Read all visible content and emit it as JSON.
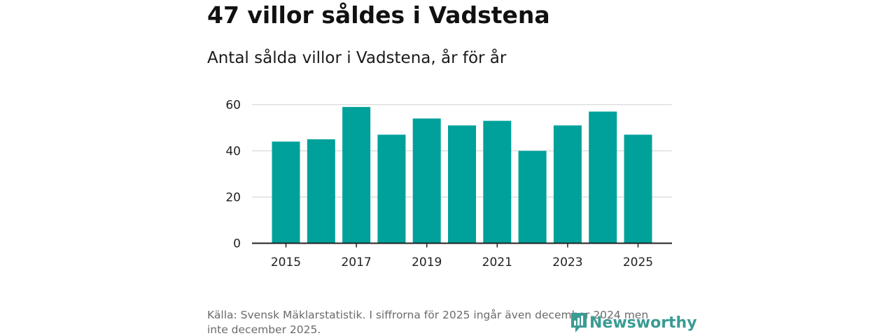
{
  "header": {
    "title": "47 villor såldes i Vadstena",
    "subtitle": "Antal sålda villor i Vadstena, år för år"
  },
  "chart_data": {
    "type": "bar",
    "categories": [
      "2015",
      "2016",
      "2017",
      "2018",
      "2019",
      "2020",
      "2021",
      "2022",
      "2023",
      "2024",
      "2025"
    ],
    "values": [
      44,
      45,
      59,
      47,
      54,
      51,
      53,
      40,
      51,
      57,
      47
    ],
    "x_tick_labels": [
      "2015",
      "2017",
      "2019",
      "2021",
      "2023",
      "2025"
    ],
    "y_ticks": [
      0,
      20,
      40,
      60
    ],
    "ylim": [
      0,
      60
    ],
    "grid": true,
    "bar_color": "#00a19a",
    "title": "",
    "xlabel": "",
    "ylabel": ""
  },
  "footer": {
    "source": "Källa: Svensk Mäklarstatistik. I siffrorna för 2025 ingår även december 2024 men inte december 2025.",
    "brand": "Newsworthy",
    "brand_color": "#3a9c93",
    "brand_icon": "newsworthy-logo-icon"
  }
}
